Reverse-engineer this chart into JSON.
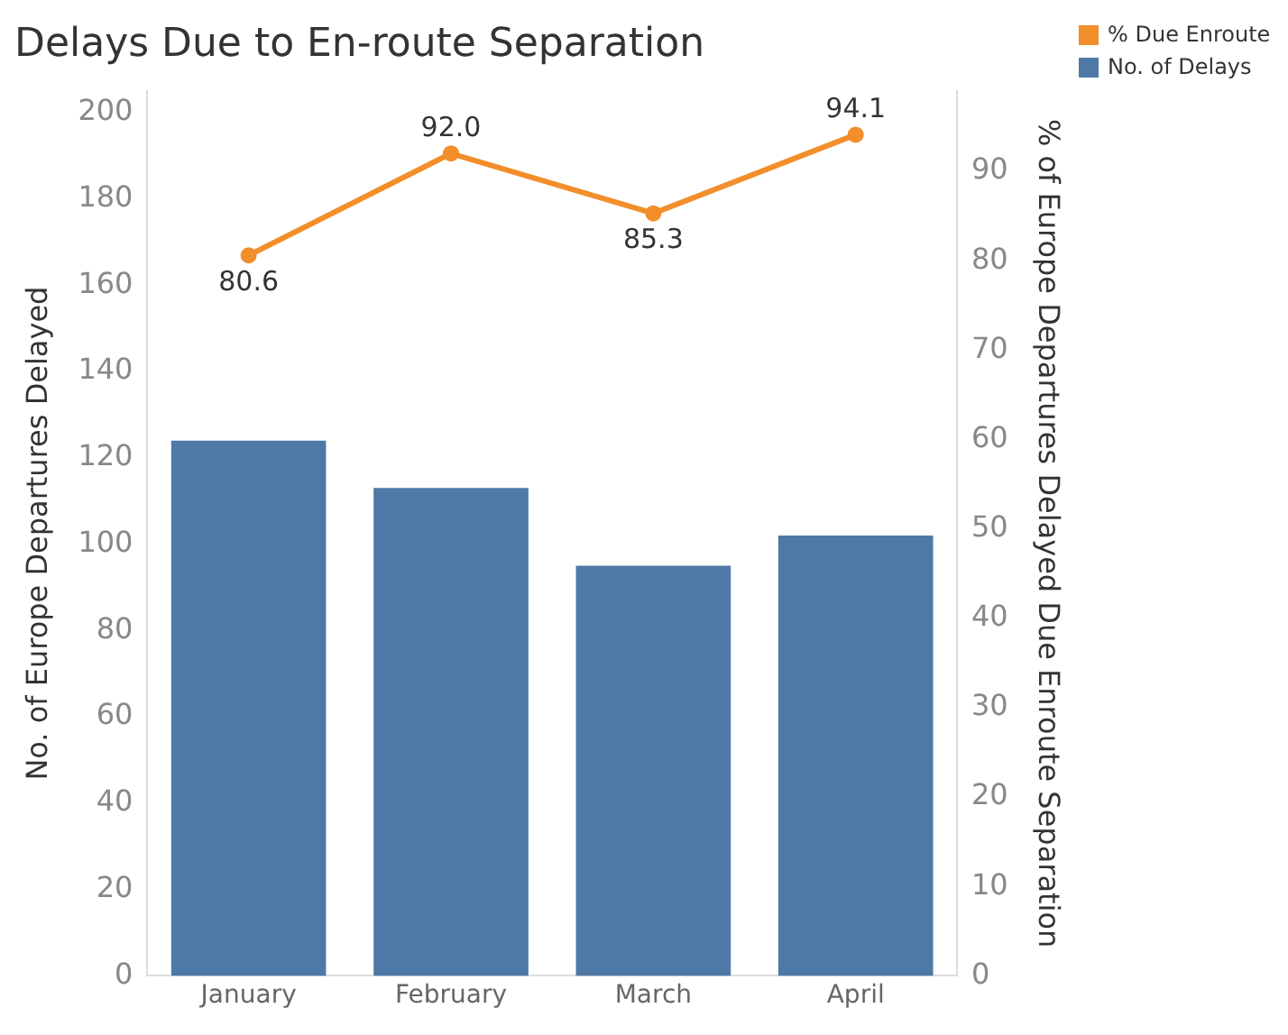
{
  "chart_data": {
    "type": "bar",
    "title": "Delays Due to En-route Separation",
    "categories": [
      "January",
      "February",
      "March",
      "April"
    ],
    "ylabel": "No. of Europe Departures Delayed",
    "y2label": "% of Europe Departures Delayed Due Enroute Separation",
    "ylim": [
      0,
      205
    ],
    "yticks": [
      0,
      20,
      40,
      60,
      80,
      100,
      120,
      140,
      160,
      180,
      200
    ],
    "y2lim": [
      0,
      99
    ],
    "y2ticks": [
      0,
      10,
      20,
      30,
      40,
      50,
      60,
      70,
      80,
      90
    ],
    "grid": false,
    "legend": "top right",
    "series": [
      {
        "name": "% Due Enroute",
        "type": "line",
        "axis": "y2",
        "color": "#f28e2b",
        "marker": "circle",
        "values": [
          80.6,
          92.0,
          85.3,
          94.1
        ],
        "value_labels": [
          "80.6",
          "92.0",
          "85.3",
          "94.1"
        ]
      },
      {
        "name": "No. of Delays",
        "color": "#4e79a7",
        "values": [
          124,
          113,
          95,
          102
        ]
      }
    ]
  }
}
